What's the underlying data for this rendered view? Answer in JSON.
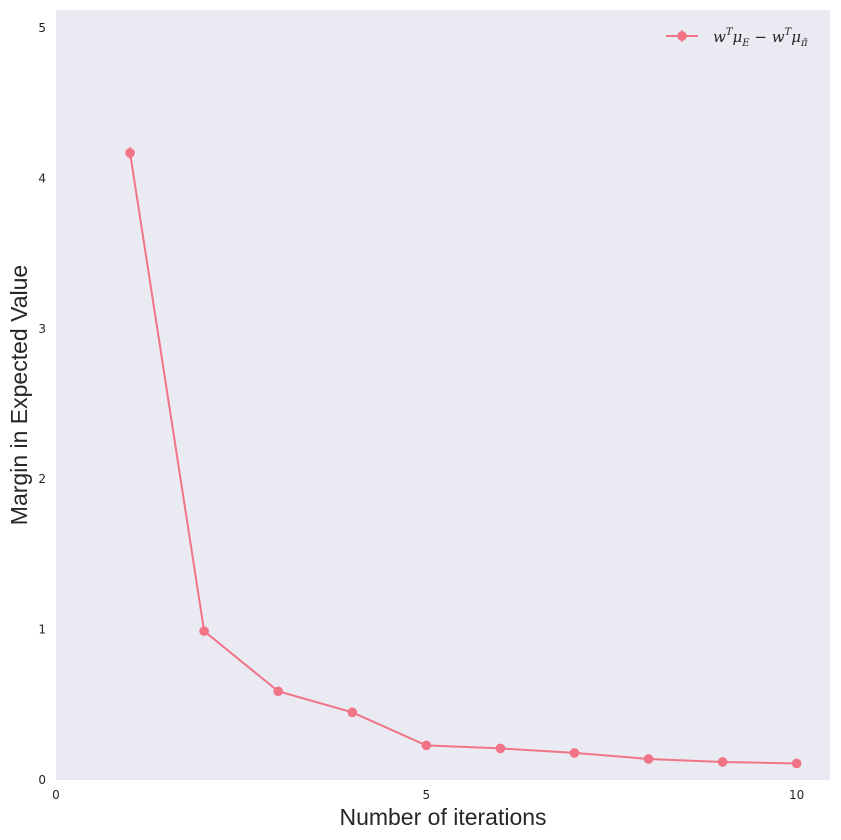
{
  "colors": {
    "plot_background": "#eaeaf2",
    "series": "#f07386",
    "text": "#262626"
  },
  "chart_data": {
    "type": "line",
    "xlabel": "Number of iterations",
    "ylabel": "Margin in Expected Value",
    "xlim": [
      0,
      10.45
    ],
    "ylim": [
      0,
      5.12
    ],
    "x_ticks": [
      0,
      5,
      10
    ],
    "y_ticks": [
      0,
      1,
      2,
      3,
      4,
      5
    ],
    "grid": false,
    "legend_position": "top-right",
    "series": [
      {
        "legend": {
          "w": "w",
          "sup_T": "T",
          "mu": "μ",
          "sub_E": "E",
          "minus": " − ",
          "sub_pi": "π̃"
        },
        "markers": "circle",
        "error_bars": true,
        "x": [
          1,
          2,
          3,
          4,
          5,
          6,
          7,
          8,
          9,
          10
        ],
        "y": [
          4.17,
          0.99,
          0.59,
          0.45,
          0.23,
          0.21,
          0.18,
          0.14,
          0.12,
          0.11
        ],
        "err": [
          0.04,
          0.02,
          0.01,
          0.01,
          0.01,
          0.01,
          0.01,
          0.01,
          0.01,
          0.01
        ]
      }
    ]
  }
}
